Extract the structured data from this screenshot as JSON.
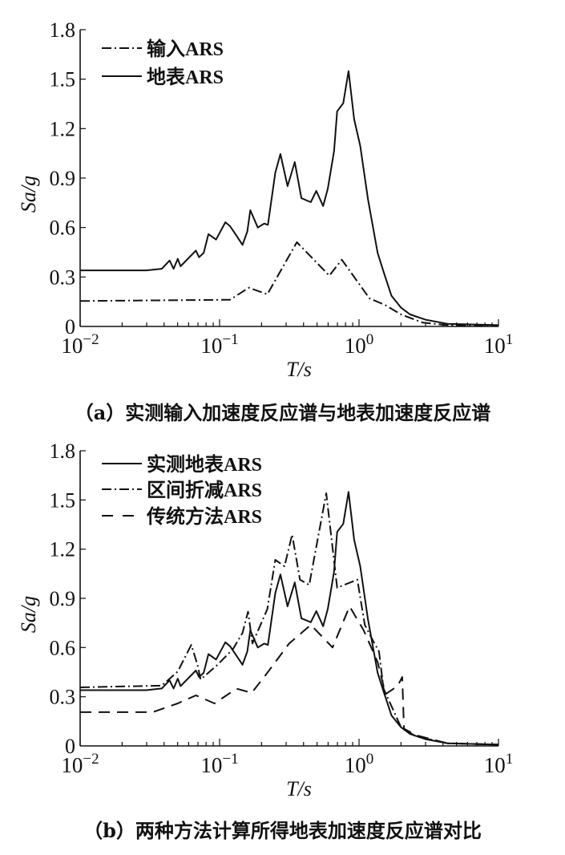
{
  "chart_data": [
    {
      "type": "line",
      "panel": "a",
      "caption": "（a）实测输入加速度反应谱与地表加速度反应谱",
      "xlabel": "T/s",
      "ylabel": "Sa/g",
      "xscale": "log",
      "xlim": [
        0.01,
        10
      ],
      "ylim": [
        0,
        1.8
      ],
      "xticks": [
        "10^-2",
        "10^-1",
        "10^0",
        "10^1"
      ],
      "yticks": [
        "0",
        "0.3",
        "0.6",
        "0.9",
        "1.2",
        "1.5",
        "1.8"
      ],
      "legend_position": "top-left",
      "series": [
        {
          "name": "输入ARS",
          "style": "dashdot",
          "x": [
            0.01,
            0.119,
            0.162,
            0.22,
            0.358,
            0.612,
            0.752,
            1.19,
            1.54,
            2.0,
            2.85,
            4.3,
            10
          ],
          "y": [
            0.154,
            0.162,
            0.235,
            0.195,
            0.511,
            0.308,
            0.405,
            0.17,
            0.13,
            0.073,
            0.024,
            0.008,
            0.005
          ]
        },
        {
          "name": "地表ARS",
          "style": "solid",
          "x": [
            0.01,
            0.0298,
            0.0385,
            0.0438,
            0.0468,
            0.0501,
            0.0525,
            0.0676,
            0.0713,
            0.0769,
            0.0832,
            0.0944,
            0.11,
            0.119,
            0.132,
            0.146,
            0.158,
            0.166,
            0.188,
            0.209,
            0.222,
            0.251,
            0.273,
            0.307,
            0.346,
            0.386,
            0.451,
            0.494,
            0.553,
            0.597,
            0.662,
            0.697,
            0.771,
            0.841,
            0.923,
            1.02,
            1.16,
            1.36,
            1.5,
            1.71,
            2.0,
            2.32,
            3.0,
            4.3,
            10
          ],
          "y": [
            0.34,
            0.34,
            0.35,
            0.4,
            0.35,
            0.41,
            0.365,
            0.46,
            0.42,
            0.446,
            0.56,
            0.527,
            0.632,
            0.608,
            0.551,
            0.495,
            0.576,
            0.705,
            0.6,
            0.624,
            0.616,
            0.932,
            1.046,
            0.851,
            0.997,
            0.778,
            0.754,
            0.822,
            0.73,
            0.835,
            1.062,
            1.305,
            1.354,
            1.549,
            1.257,
            1.095,
            0.77,
            0.446,
            0.332,
            0.186,
            0.114,
            0.073,
            0.041,
            0.016,
            0.008
          ]
        }
      ]
    },
    {
      "type": "line",
      "panel": "b",
      "caption": "（b）两种方法计算所得地表加速度反应谱对比",
      "xlabel": "T/s",
      "ylabel": "Sa/g",
      "xscale": "log",
      "xlim": [
        0.01,
        10
      ],
      "ylim": [
        0,
        1.8
      ],
      "xticks": [
        "10^-2",
        "10^-1",
        "10^0",
        "10^1"
      ],
      "yticks": [
        "0",
        "0.3",
        "0.6",
        "0.9",
        "1.2",
        "1.5",
        "1.8"
      ],
      "legend_position": "top-left",
      "series": [
        {
          "name": "实测地表ARS",
          "style": "solid",
          "x": [
            0.01,
            0.0298,
            0.0385,
            0.0438,
            0.0468,
            0.0501,
            0.0525,
            0.0676,
            0.0713,
            0.0769,
            0.0832,
            0.0944,
            0.11,
            0.119,
            0.132,
            0.146,
            0.158,
            0.166,
            0.188,
            0.209,
            0.222,
            0.251,
            0.273,
            0.307,
            0.346,
            0.386,
            0.451,
            0.494,
            0.553,
            0.597,
            0.662,
            0.697,
            0.771,
            0.841,
            0.923,
            1.02,
            1.16,
            1.36,
            1.5,
            1.71,
            2.0,
            2.32,
            3.0,
            4.3,
            10
          ],
          "y": [
            0.34,
            0.34,
            0.35,
            0.4,
            0.35,
            0.41,
            0.365,
            0.46,
            0.42,
            0.446,
            0.56,
            0.527,
            0.632,
            0.608,
            0.551,
            0.495,
            0.576,
            0.705,
            0.6,
            0.624,
            0.616,
            0.932,
            1.046,
            0.851,
            0.997,
            0.778,
            0.754,
            0.822,
            0.73,
            0.835,
            1.062,
            1.305,
            1.354,
            1.549,
            1.257,
            1.095,
            0.77,
            0.446,
            0.332,
            0.186,
            0.114,
            0.073,
            0.041,
            0.016,
            0.008
          ]
        },
        {
          "name": "区间折减ARS",
          "style": "dashdot",
          "x": [
            0.01,
            0.0385,
            0.0501,
            0.0627,
            0.0694,
            0.0731,
            0.0968,
            0.125,
            0.146,
            0.16,
            0.172,
            0.22,
            0.251,
            0.292,
            0.331,
            0.377,
            0.439,
            0.582,
            0.697,
            0.972,
            1.1,
            1.26,
            1.39,
            1.5,
            2.0,
            2.57,
            4.3,
            10
          ],
          "y": [
            0.357,
            0.368,
            0.454,
            0.616,
            0.495,
            0.405,
            0.495,
            0.592,
            0.689,
            0.819,
            0.624,
            0.835,
            1.135,
            1.095,
            1.289,
            1.014,
            0.981,
            1.541,
            0.965,
            1.014,
            0.738,
            0.641,
            0.576,
            0.349,
            0.114,
            0.057,
            0.016,
            0.008
          ]
        },
        {
          "name": "传统方法ARS",
          "style": "dashed",
          "x": [
            0.01,
            0.0331,
            0.0501,
            0.0676,
            0.092,
            0.132,
            0.17,
            0.22,
            0.315,
            0.451,
            0.646,
            0.855,
            1.08,
            1.36,
            1.5,
            1.55,
            1.89,
            2.04,
            2.1,
            2.57,
            4.3,
            10
          ],
          "y": [
            0.206,
            0.206,
            0.259,
            0.308,
            0.259,
            0.349,
            0.324,
            0.446,
            0.624,
            0.738,
            0.6,
            0.851,
            0.705,
            0.511,
            0.365,
            0.316,
            0.365,
            0.42,
            0.105,
            0.065,
            0.016,
            0.008
          ]
        }
      ]
    }
  ]
}
